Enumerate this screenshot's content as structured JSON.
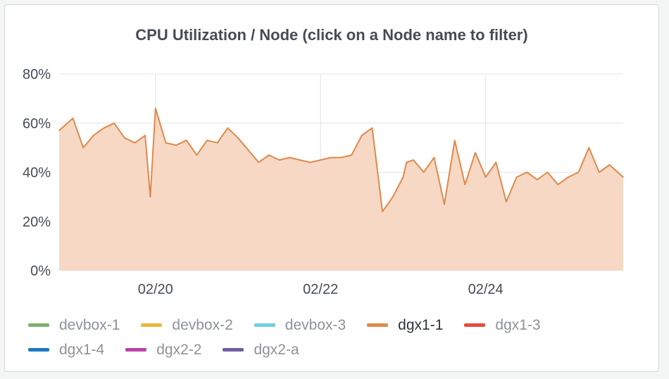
{
  "panel": {
    "title": "CPU Utilization / Node (click on a Node name to filter)"
  },
  "chart_data": {
    "type": "area",
    "title": "CPU Utilization / Node (click on a Node name to filter)",
    "x_range": [
      "02/18 20:00",
      "02/25 16:00"
    ],
    "x_ticks": [
      "02/20",
      "02/22",
      "02/24"
    ],
    "y_ticks": [
      "0%",
      "20%",
      "40%",
      "60%",
      "80%"
    ],
    "ylim": [
      0,
      80
    ],
    "grid": true,
    "legend_position": "bottom",
    "series": [
      {
        "name": "dgx1-1",
        "color": "#e0894a",
        "fill": "#f6d8c5",
        "x": [
          "02/18 20:00",
          "02/19 00:00",
          "02/19 03:00",
          "02/19 06:00",
          "02/19 09:00",
          "02/19 12:00",
          "02/19 15:00",
          "02/19 18:00",
          "02/19 21:00",
          "02/19 22:30",
          "02/20 00:00",
          "02/20 03:00",
          "02/20 06:00",
          "02/20 09:00",
          "02/20 12:00",
          "02/20 15:00",
          "02/20 18:00",
          "02/20 21:00",
          "02/21 00:00",
          "02/21 03:00",
          "02/21 06:00",
          "02/21 09:00",
          "02/21 12:00",
          "02/21 15:00",
          "02/21 18:00",
          "02/21 21:00",
          "02/22 00:00",
          "02/22 03:00",
          "02/22 06:00",
          "02/22 09:00",
          "02/22 12:00",
          "02/22 15:00",
          "02/22 18:00",
          "02/22 21:00",
          "02/23 00:00",
          "02/23 01:00",
          "02/23 03:00",
          "02/23 06:00",
          "02/23 09:00",
          "02/23 12:00",
          "02/23 15:00",
          "02/23 18:00",
          "02/23 21:00",
          "02/24 00:00",
          "02/24 03:00",
          "02/24 06:00",
          "02/24 09:00",
          "02/24 12:00",
          "02/24 15:00",
          "02/24 18:00",
          "02/24 21:00",
          "02/25 00:00",
          "02/25 03:00",
          "02/25 06:00",
          "02/25 09:00",
          "02/25 12:00",
          "02/25 16:00"
        ],
        "values": [
          57,
          62,
          50,
          55,
          58,
          60,
          54,
          52,
          55,
          30,
          66,
          52,
          51,
          53,
          47,
          53,
          52,
          58,
          54,
          49,
          44,
          47,
          45,
          46,
          45,
          44,
          45,
          46,
          46,
          47,
          55,
          58,
          24,
          30,
          38,
          44,
          45,
          40,
          46,
          27,
          53,
          35,
          48,
          38,
          44,
          28,
          38,
          40,
          37,
          40,
          35,
          38,
          40,
          50,
          40,
          43,
          38
        ]
      }
    ],
    "legend": [
      {
        "name": "devbox-1",
        "color": "#7eb26d",
        "active": false
      },
      {
        "name": "devbox-2",
        "color": "#eab839",
        "active": false
      },
      {
        "name": "devbox-3",
        "color": "#6ed0e0",
        "active": false
      },
      {
        "name": "dgx1-1",
        "color": "#e0894a",
        "active": true
      },
      {
        "name": "dgx1-3",
        "color": "#e24d42",
        "active": false
      },
      {
        "name": "dgx1-4",
        "color": "#1f78c1",
        "active": false
      },
      {
        "name": "dgx2-2",
        "color": "#ba43a9",
        "active": false
      },
      {
        "name": "dgx2-a",
        "color": "#705da0",
        "active": false
      }
    ]
  }
}
